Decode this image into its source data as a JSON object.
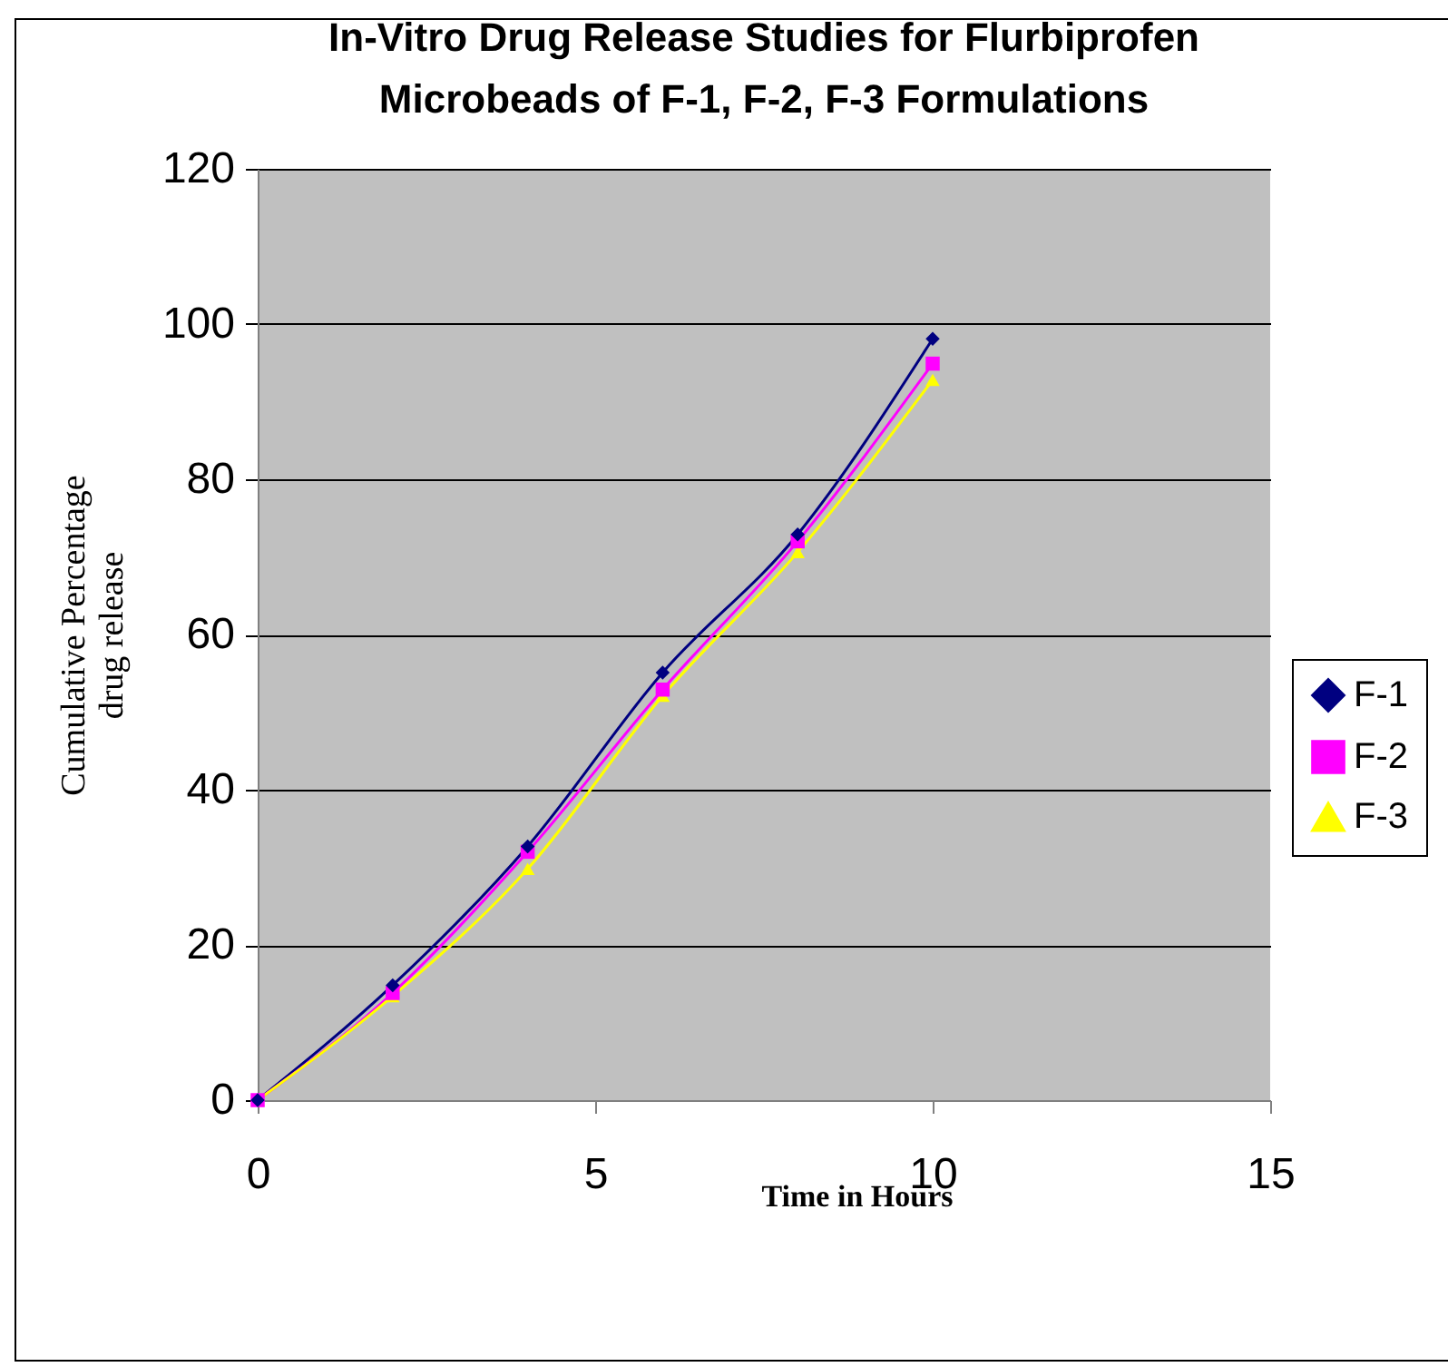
{
  "chart_data": {
    "type": "line",
    "title": "In-Vitro Drug Release Studies for Flurbiprofen\nMicrobeads of F-1, F-2, F-3 Formulations",
    "xlabel": "Time in Hours",
    "ylabel": "Cumulative Percentage\ndrug release",
    "x": [
      0,
      2,
      4,
      6,
      8,
      10
    ],
    "series": [
      {
        "name": "F-1",
        "color": "#000080",
        "marker": "diamond",
        "values": [
          0,
          14.8,
          32.7,
          55.1,
          72.9,
          98.1
        ]
      },
      {
        "name": "F-2",
        "color": "#ff00ff",
        "marker": "square",
        "values": [
          0,
          13.8,
          32.0,
          52.9,
          72.0,
          94.9
        ]
      },
      {
        "name": "F-3",
        "color": "#ffff00",
        "marker": "triangle",
        "values": [
          0,
          13.4,
          29.8,
          52.1,
          70.6,
          92.8
        ]
      }
    ],
    "xlim": [
      0,
      15
    ],
    "xticks": [
      0,
      5,
      10,
      15
    ],
    "ylim": [
      0,
      120
    ],
    "yticks": [
      0,
      20,
      40,
      60,
      80,
      100,
      120
    ],
    "grid": "y",
    "legend": "right",
    "line_style": "solid"
  }
}
